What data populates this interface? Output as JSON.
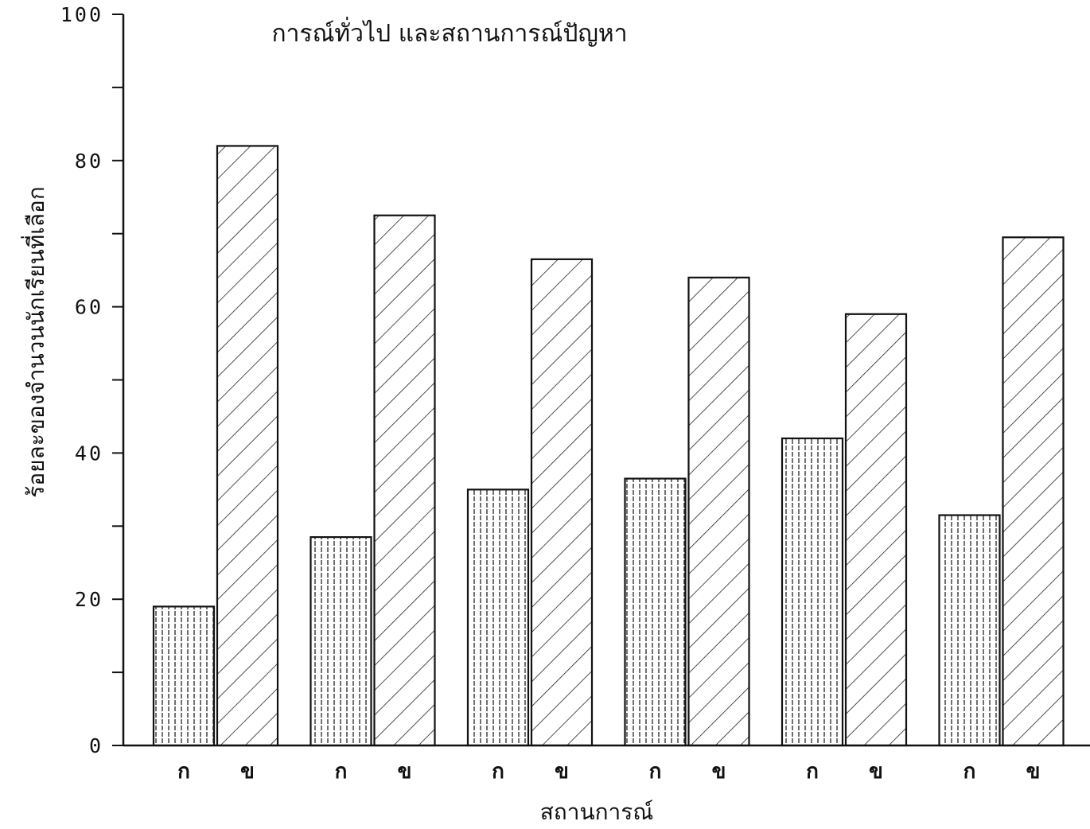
{
  "chart_data": {
    "type": "bar",
    "title": "การณ์ทั่วไป และสถานการณ์ปัญหา",
    "xlabel": "สถานการณ์",
    "ylabel": "ร้อยละของจำนวนนักเรียนที่เลือก",
    "ylim": [
      0,
      100
    ],
    "yticks": [
      "0",
      "20",
      "40",
      "60",
      "80",
      "100"
    ],
    "categories": [
      "ก",
      "ข",
      "ก",
      "ข",
      "ก",
      "ข",
      "ก",
      "ข",
      "ก",
      "ข",
      "ก",
      "ข"
    ],
    "series": [
      {
        "values": [
          19,
          82,
          28.5,
          72.5,
          35,
          66.5,
          36.5,
          64,
          42,
          59,
          31.5,
          69.5
        ]
      }
    ],
    "bar_patterns": [
      "vertical",
      "diagonal",
      "vertical",
      "diagonal",
      "vertical",
      "diagonal",
      "vertical",
      "diagonal",
      "vertical",
      "diagonal",
      "vertical",
      "diagonal"
    ],
    "grid": false,
    "legend": "none"
  }
}
